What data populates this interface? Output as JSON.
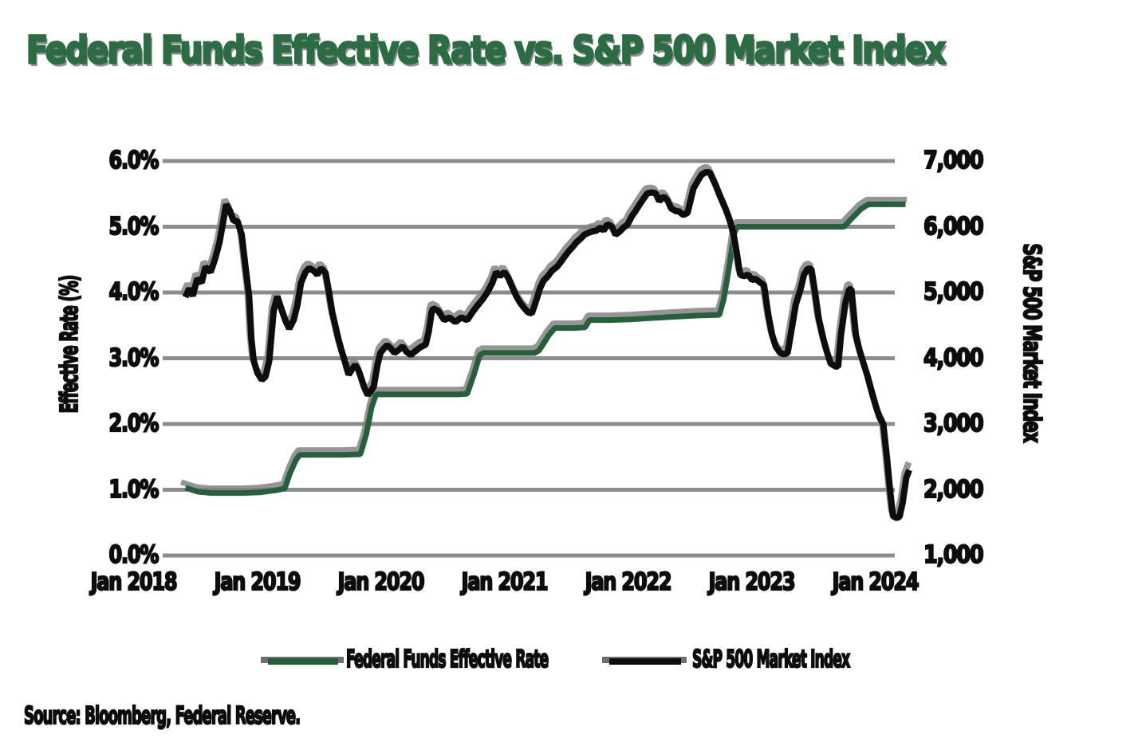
{
  "title": "Federal Funds Effective Rate vs. S&P 500 Market Index",
  "source": "Source: Bloomberg, Federal Reserve.",
  "colors": {
    "title_green": "#2C6B44",
    "fed_line_green": "#275E3C",
    "sp500_line_black": "#0d0d0d",
    "gridline_gray": "#8c8c8c",
    "shadow_gray": "#828282",
    "background": "#ffffff"
  },
  "legend": {
    "items": [
      {
        "label": "Federal Funds Effective Rate",
        "color": "#275E3C"
      },
      {
        "label": "S&P 500 Market Index",
        "color": "#0d0d0d"
      }
    ]
  },
  "chart_data": {
    "type": "line",
    "title": "Federal Funds Effective Rate vs. S&P 500 Market Index",
    "grid": "horizontal-only",
    "legend_position": "bottom-center",
    "x_axis": {
      "tick_labels": [
        "Jan 2018",
        "Jan 2019",
        "Jan 2020",
        "Jan 2021",
        "Jan 2022",
        "Jan 2023",
        "Jan 2024"
      ]
    },
    "left_axis": {
      "title": "Effective Rate (%)",
      "min": 0,
      "max": 6,
      "tick_labels": [
        "6.0%",
        "5.0%",
        "4.0%",
        "3.0%",
        "2.0%",
        "1.0%",
        "0.0%"
      ]
    },
    "right_axis": {
      "title": "S&P 500 Market Index",
      "min": 1000,
      "max": 7000,
      "tick_labels": [
        "7,000",
        "6,000",
        "5,000",
        "4,000",
        "3,000",
        "2,000",
        "1,000"
      ]
    },
    "series": [
      {
        "name": "Federal Funds Effective Rate",
        "axis": "left",
        "color": "#275E3C",
        "width": 7,
        "points": [
          [
            0.022,
            1.03
          ],
          [
            0.039,
            0.97
          ],
          [
            0.057,
            0.95
          ],
          [
            0.079,
            0.95
          ],
          [
            0.1,
            0.95
          ],
          [
            0.122,
            0.96
          ],
          [
            0.143,
            0.99
          ],
          [
            0.156,
            1.02
          ],
          [
            0.163,
            1.25
          ],
          [
            0.171,
            1.45
          ],
          [
            0.176,
            1.53
          ],
          [
            0.202,
            1.53
          ],
          [
            0.234,
            1.53
          ],
          [
            0.258,
            1.54
          ],
          [
            0.266,
            1.85
          ],
          [
            0.273,
            2.25
          ],
          [
            0.279,
            2.45
          ],
          [
            0.31,
            2.45
          ],
          [
            0.353,
            2.45
          ],
          [
            0.39,
            2.45
          ],
          [
            0.402,
            2.46
          ],
          [
            0.411,
            2.75
          ],
          [
            0.419,
            3.05
          ],
          [
            0.424,
            3.08
          ],
          [
            0.46,
            3.08
          ],
          [
            0.493,
            3.08
          ],
          [
            0.499,
            3.12
          ],
          [
            0.512,
            3.35
          ],
          [
            0.52,
            3.46
          ],
          [
            0.546,
            3.46
          ],
          [
            0.561,
            3.47
          ],
          [
            0.567,
            3.58
          ],
          [
            0.595,
            3.58
          ],
          [
            0.622,
            3.59
          ],
          [
            0.648,
            3.61
          ],
          [
            0.681,
            3.63
          ],
          [
            0.713,
            3.65
          ],
          [
            0.742,
            3.66
          ],
          [
            0.748,
            3.9
          ],
          [
            0.756,
            4.45
          ],
          [
            0.762,
            4.9
          ],
          [
            0.766,
            5.0
          ],
          [
            0.804,
            5.0
          ],
          [
            0.847,
            5.0
          ],
          [
            0.89,
            5.0
          ],
          [
            0.91,
            5.0
          ],
          [
            0.92,
            5.12
          ],
          [
            0.933,
            5.27
          ],
          [
            0.943,
            5.34
          ],
          [
            0.966,
            5.34
          ],
          [
            0.993,
            5.34
          ]
        ]
      },
      {
        "name": "S&P 500 Market Index",
        "axis": "right",
        "color": "#0d0d0d",
        "width": 8,
        "points": [
          [
            0.022,
            4930
          ],
          [
            0.027,
            5060
          ],
          [
            0.032,
            4950
          ],
          [
            0.038,
            5210
          ],
          [
            0.044,
            5150
          ],
          [
            0.049,
            5390
          ],
          [
            0.056,
            5310
          ],
          [
            0.062,
            5510
          ],
          [
            0.068,
            5760
          ],
          [
            0.073,
            6080
          ],
          [
            0.077,
            6340
          ],
          [
            0.082,
            6240
          ],
          [
            0.087,
            6090
          ],
          [
            0.092,
            6090
          ],
          [
            0.098,
            5880
          ],
          [
            0.103,
            5390
          ],
          [
            0.108,
            4940
          ],
          [
            0.111,
            4300
          ],
          [
            0.114,
            3970
          ],
          [
            0.119,
            3780
          ],
          [
            0.125,
            3670
          ],
          [
            0.13,
            3720
          ],
          [
            0.135,
            3960
          ],
          [
            0.141,
            4720
          ],
          [
            0.146,
            4940
          ],
          [
            0.152,
            4730
          ],
          [
            0.157,
            4570
          ],
          [
            0.162,
            4450
          ],
          [
            0.168,
            4580
          ],
          [
            0.173,
            4810
          ],
          [
            0.178,
            5150
          ],
          [
            0.184,
            5310
          ],
          [
            0.189,
            5370
          ],
          [
            0.195,
            5330
          ],
          [
            0.2,
            5270
          ],
          [
            0.205,
            5370
          ],
          [
            0.211,
            5300
          ],
          [
            0.216,
            4980
          ],
          [
            0.22,
            4700
          ],
          [
            0.225,
            4450
          ],
          [
            0.229,
            4260
          ],
          [
            0.233,
            4100
          ],
          [
            0.238,
            3920
          ],
          [
            0.242,
            3750
          ],
          [
            0.246,
            3820
          ],
          [
            0.251,
            3900
          ],
          [
            0.255,
            3830
          ],
          [
            0.259,
            3700
          ],
          [
            0.263,
            3560
          ],
          [
            0.268,
            3440
          ],
          [
            0.272,
            3500
          ],
          [
            0.276,
            3570
          ],
          [
            0.281,
            3900
          ],
          [
            0.285,
            4080
          ],
          [
            0.289,
            4140
          ],
          [
            0.294,
            4200
          ],
          [
            0.299,
            4150
          ],
          [
            0.304,
            4080
          ],
          [
            0.31,
            4130
          ],
          [
            0.315,
            4180
          ],
          [
            0.32,
            4100
          ],
          [
            0.326,
            4050
          ],
          [
            0.331,
            4100
          ],
          [
            0.338,
            4160
          ],
          [
            0.346,
            4210
          ],
          [
            0.35,
            4400
          ],
          [
            0.354,
            4700
          ],
          [
            0.356,
            4760
          ],
          [
            0.363,
            4720
          ],
          [
            0.371,
            4580
          ],
          [
            0.378,
            4620
          ],
          [
            0.386,
            4550
          ],
          [
            0.394,
            4620
          ],
          [
            0.402,
            4580
          ],
          [
            0.409,
            4700
          ],
          [
            0.415,
            4790
          ],
          [
            0.423,
            4900
          ],
          [
            0.429,
            5000
          ],
          [
            0.436,
            5150
          ],
          [
            0.441,
            5310
          ],
          [
            0.446,
            5250
          ],
          [
            0.452,
            5310
          ],
          [
            0.457,
            5230
          ],
          [
            0.462,
            5100
          ],
          [
            0.468,
            4950
          ],
          [
            0.473,
            4850
          ],
          [
            0.479,
            4760
          ],
          [
            0.484,
            4700
          ],
          [
            0.489,
            4680
          ],
          [
            0.495,
            4880
          ],
          [
            0.5,
            5060
          ],
          [
            0.505,
            5180
          ],
          [
            0.511,
            5250
          ],
          [
            0.516,
            5330
          ],
          [
            0.523,
            5390
          ],
          [
            0.528,
            5460
          ],
          [
            0.533,
            5540
          ],
          [
            0.539,
            5630
          ],
          [
            0.544,
            5690
          ],
          [
            0.549,
            5760
          ],
          [
            0.555,
            5820
          ],
          [
            0.56,
            5880
          ],
          [
            0.566,
            5910
          ],
          [
            0.571,
            5930
          ],
          [
            0.576,
            5940
          ],
          [
            0.582,
            5990
          ],
          [
            0.586,
            5940
          ],
          [
            0.591,
            6040
          ],
          [
            0.597,
            6000
          ],
          [
            0.602,
            5880
          ],
          [
            0.608,
            5930
          ],
          [
            0.613,
            5990
          ],
          [
            0.618,
            6030
          ],
          [
            0.624,
            6160
          ],
          [
            0.629,
            6240
          ],
          [
            0.634,
            6330
          ],
          [
            0.64,
            6430
          ],
          [
            0.645,
            6510
          ],
          [
            0.651,
            6520
          ],
          [
            0.656,
            6510
          ],
          [
            0.661,
            6390
          ],
          [
            0.667,
            6460
          ],
          [
            0.672,
            6400
          ],
          [
            0.677,
            6280
          ],
          [
            0.683,
            6240
          ],
          [
            0.688,
            6230
          ],
          [
            0.693,
            6180
          ],
          [
            0.699,
            6210
          ],
          [
            0.702,
            6350
          ],
          [
            0.707,
            6580
          ],
          [
            0.713,
            6700
          ],
          [
            0.718,
            6790
          ],
          [
            0.724,
            6830
          ],
          [
            0.729,
            6825
          ],
          [
            0.737,
            6630
          ],
          [
            0.743,
            6460
          ],
          [
            0.75,
            6280
          ],
          [
            0.756,
            6100
          ],
          [
            0.761,
            5900
          ],
          [
            0.766,
            5560
          ],
          [
            0.77,
            5270
          ],
          [
            0.775,
            5250
          ],
          [
            0.781,
            5270
          ],
          [
            0.786,
            5190
          ],
          [
            0.791,
            5210
          ],
          [
            0.797,
            5150
          ],
          [
            0.802,
            5120
          ],
          [
            0.808,
            4660
          ],
          [
            0.813,
            4360
          ],
          [
            0.818,
            4180
          ],
          [
            0.824,
            4080
          ],
          [
            0.829,
            4060
          ],
          [
            0.834,
            4080
          ],
          [
            0.84,
            4480
          ],
          [
            0.845,
            4820
          ],
          [
            0.851,
            5030
          ],
          [
            0.856,
            5270
          ],
          [
            0.861,
            5360
          ],
          [
            0.866,
            5360
          ],
          [
            0.871,
            5000
          ],
          [
            0.876,
            4600
          ],
          [
            0.882,
            4300
          ],
          [
            0.887,
            4100
          ],
          [
            0.892,
            3920
          ],
          [
            0.898,
            3880
          ],
          [
            0.902,
            3870
          ],
          [
            0.906,
            4360
          ],
          [
            0.912,
            4850
          ],
          [
            0.917,
            5050
          ],
          [
            0.92,
            5050
          ],
          [
            0.926,
            4350
          ],
          [
            0.931,
            4120
          ],
          [
            0.937,
            3900
          ],
          [
            0.942,
            3720
          ],
          [
            0.947,
            3510
          ],
          [
            0.953,
            3270
          ],
          [
            0.958,
            3100
          ],
          [
            0.963,
            3000
          ],
          [
            0.968,
            2480
          ],
          [
            0.972,
            2000
          ],
          [
            0.976,
            1600
          ],
          [
            0.981,
            1570
          ],
          [
            0.985,
            1590
          ],
          [
            0.989,
            1800
          ],
          [
            0.994,
            2180
          ],
          [
            0.998,
            2300
          ]
        ]
      }
    ]
  }
}
